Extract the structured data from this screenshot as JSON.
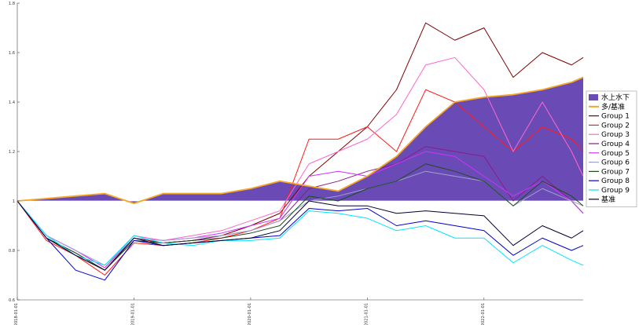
{
  "chart_data": {
    "type": "line",
    "title": "",
    "xlabel": "",
    "ylabel": "",
    "ylim": [
      0.6,
      1.8
    ],
    "y_ticks": [
      "0.6",
      "0.8",
      "1",
      "1.2",
      "1.4",
      "1.6",
      "1.8"
    ],
    "x_ticks": [
      {
        "t": 0,
        "label": "2018-01-01"
      },
      {
        "t": 1,
        "label": "2019-01-01"
      },
      {
        "t": 2,
        "label": "2020-01-01"
      },
      {
        "t": 3,
        "label": "2021-01-01"
      },
      {
        "t": 4,
        "label": "2022-01-01"
      }
    ],
    "x_range": [
      0,
      4.85
    ],
    "area": {
      "name": "水上水下",
      "color": "#6a4bb5",
      "baseline": 1.0
    },
    "legend": {
      "position": "right",
      "entries": [
        "水上水下",
        "多/基准",
        "Group 1",
        "Group 2",
        "Group 3",
        "Group 4",
        "Group 5",
        "Group 6",
        "Group 7",
        "Group 8",
        "Group 9",
        "基准"
      ]
    },
    "series": [
      {
        "name": "多/基准",
        "color": "#f5a623",
        "width": 1.8,
        "x": [
          0,
          0.25,
          0.5,
          0.75,
          1.0,
          1.25,
          1.5,
          1.75,
          2.0,
          2.25,
          2.5,
          2.75,
          3.0,
          3.25,
          3.5,
          3.75,
          4.0,
          4.25,
          4.5,
          4.75,
          4.85
        ],
        "y": [
          1.0,
          1.01,
          1.02,
          1.03,
          0.99,
          1.03,
          1.03,
          1.03,
          1.05,
          1.08,
          1.06,
          1.04,
          1.1,
          1.18,
          1.3,
          1.4,
          1.42,
          1.43,
          1.45,
          1.48,
          1.5
        ]
      },
      {
        "name": "Group 1",
        "color": "#7f0000",
        "width": 1.0,
        "x": [
          0,
          0.25,
          0.5,
          0.75,
          1.0,
          1.25,
          1.5,
          1.75,
          2.0,
          2.25,
          2.5,
          2.75,
          3.0,
          3.25,
          3.5,
          3.75,
          4.0,
          4.25,
          4.5,
          4.75,
          4.85
        ],
        "y": [
          1.0,
          0.85,
          0.78,
          0.72,
          0.85,
          0.83,
          0.84,
          0.86,
          0.9,
          0.95,
          1.1,
          1.2,
          1.3,
          1.45,
          1.72,
          1.65,
          1.7,
          1.5,
          1.6,
          1.55,
          1.58
        ]
      },
      {
        "name": "Group 2",
        "color": "#ff1a1a",
        "width": 1.0,
        "x": [
          0,
          0.25,
          0.5,
          0.75,
          1.0,
          1.25,
          1.5,
          1.75,
          2.0,
          2.25,
          2.5,
          2.75,
          3.0,
          3.25,
          3.5,
          3.75,
          4.0,
          4.25,
          4.5,
          4.75,
          4.85
        ],
        "y": [
          1.0,
          0.84,
          0.78,
          0.7,
          0.83,
          0.82,
          0.83,
          0.85,
          0.88,
          0.93,
          1.25,
          1.25,
          1.3,
          1.2,
          1.45,
          1.4,
          1.3,
          1.2,
          1.3,
          1.25,
          1.2
        ]
      },
      {
        "name": "Group 3",
        "color": "#ff66cc",
        "width": 1.0,
        "x": [
          0,
          0.25,
          0.5,
          0.75,
          1.0,
          1.25,
          1.5,
          1.75,
          2.0,
          2.25,
          2.5,
          2.75,
          3.0,
          3.25,
          3.5,
          3.75,
          4.0,
          4.25,
          4.5,
          4.75,
          4.85
        ],
        "y": [
          1.0,
          0.86,
          0.8,
          0.73,
          0.86,
          0.84,
          0.86,
          0.88,
          0.92,
          0.96,
          1.15,
          1.2,
          1.25,
          1.35,
          1.55,
          1.58,
          1.45,
          1.2,
          1.4,
          1.2,
          1.1
        ]
      },
      {
        "name": "Group 4",
        "color": "#8b1a8b",
        "width": 1.0,
        "x": [
          0,
          0.25,
          0.5,
          0.75,
          1.0,
          1.25,
          1.5,
          1.75,
          2.0,
          2.25,
          2.5,
          2.75,
          3.0,
          3.25,
          3.5,
          3.75,
          4.0,
          4.25,
          4.5,
          4.75,
          4.85
        ],
        "y": [
          1.0,
          0.85,
          0.79,
          0.72,
          0.84,
          0.83,
          0.84,
          0.86,
          0.88,
          0.92,
          1.05,
          1.08,
          1.12,
          1.15,
          1.22,
          1.2,
          1.18,
          1.0,
          1.1,
          1.0,
          0.95
        ]
      },
      {
        "name": "Group 5",
        "color": "#cc33ff",
        "width": 1.0,
        "x": [
          0,
          0.25,
          0.5,
          0.75,
          1.0,
          1.25,
          1.5,
          1.75,
          2.0,
          2.25,
          2.5,
          2.75,
          3.0,
          3.25,
          3.5,
          3.75,
          4.0,
          4.25,
          4.5,
          4.75,
          4.85
        ],
        "y": [
          1.0,
          0.86,
          0.8,
          0.73,
          0.85,
          0.84,
          0.85,
          0.87,
          0.9,
          0.93,
          1.1,
          1.12,
          1.1,
          1.15,
          1.2,
          1.18,
          1.1,
          1.02,
          1.08,
          1.0,
          0.95
        ]
      },
      {
        "name": "Group 6",
        "color": "#a0a0d0",
        "width": 1.0,
        "x": [
          0,
          0.25,
          0.5,
          0.75,
          1.0,
          1.25,
          1.5,
          1.75,
          2.0,
          2.25,
          2.5,
          2.75,
          3.0,
          3.25,
          3.5,
          3.75,
          4.0,
          4.25,
          4.5,
          4.75,
          4.85
        ],
        "y": [
          1.0,
          0.86,
          0.8,
          0.74,
          0.85,
          0.84,
          0.85,
          0.86,
          0.88,
          0.92,
          1.0,
          1.02,
          1.05,
          1.08,
          1.12,
          1.1,
          1.08,
          0.98,
          1.05,
          1.0,
          0.98
        ]
      },
      {
        "name": "Group 7",
        "color": "#1a4d1a",
        "width": 1.0,
        "x": [
          0,
          0.25,
          0.5,
          0.75,
          1.0,
          1.25,
          1.5,
          1.75,
          2.0,
          2.25,
          2.5,
          2.75,
          3.0,
          3.25,
          3.5,
          3.75,
          4.0,
          4.25,
          4.5,
          4.75,
          4.85
        ],
        "y": [
          1.0,
          0.85,
          0.79,
          0.72,
          0.84,
          0.83,
          0.84,
          0.85,
          0.87,
          0.9,
          1.02,
          1.0,
          1.05,
          1.08,
          1.15,
          1.12,
          1.08,
          0.98,
          1.08,
          1.02,
          0.98
        ]
      },
      {
        "name": "Group 8",
        "color": "#0000cc",
        "width": 1.0,
        "x": [
          0,
          0.25,
          0.5,
          0.75,
          1.0,
          1.25,
          1.5,
          1.75,
          2.0,
          2.25,
          2.5,
          2.75,
          3.0,
          3.25,
          3.5,
          3.75,
          4.0,
          4.25,
          4.5,
          4.75,
          4.85
        ],
        "y": [
          1.0,
          0.85,
          0.72,
          0.68,
          0.84,
          0.82,
          0.83,
          0.84,
          0.85,
          0.86,
          0.97,
          0.96,
          0.97,
          0.9,
          0.92,
          0.9,
          0.88,
          0.78,
          0.85,
          0.8,
          0.82
        ]
      },
      {
        "name": "Group 9",
        "color": "#00e5ff",
        "width": 1.0,
        "x": [
          0,
          0.25,
          0.5,
          0.75,
          1.0,
          1.25,
          1.5,
          1.75,
          2.0,
          2.25,
          2.5,
          2.75,
          3.0,
          3.25,
          3.5,
          3.75,
          4.0,
          4.25,
          4.5,
          4.75,
          4.85
        ],
        "y": [
          1.0,
          0.86,
          0.78,
          0.74,
          0.86,
          0.83,
          0.82,
          0.84,
          0.84,
          0.85,
          0.96,
          0.95,
          0.93,
          0.88,
          0.9,
          0.85,
          0.85,
          0.75,
          0.82,
          0.76,
          0.74
        ]
      },
      {
        "name": "基准",
        "color": "#000033",
        "width": 1.0,
        "x": [
          0,
          0.25,
          0.5,
          0.75,
          1.0,
          1.25,
          1.5,
          1.75,
          2.0,
          2.25,
          2.5,
          2.75,
          3.0,
          3.25,
          3.5,
          3.75,
          4.0,
          4.25,
          4.5,
          4.75,
          4.85
        ],
        "y": [
          1.0,
          0.85,
          0.78,
          0.72,
          0.85,
          0.82,
          0.83,
          0.84,
          0.85,
          0.88,
          1.0,
          0.98,
          0.98,
          0.95,
          0.96,
          0.95,
          0.94,
          0.82,
          0.9,
          0.85,
          0.88
        ]
      }
    ]
  }
}
